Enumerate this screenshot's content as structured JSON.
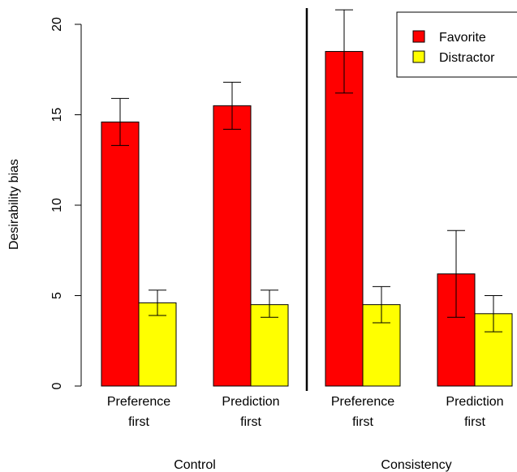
{
  "chart_data": {
    "type": "bar",
    "ylabel": "Desirability bias",
    "ylim": [
      0,
      20
    ],
    "yticks": [
      0,
      5,
      10,
      15,
      20
    ],
    "groups": [
      {
        "name": "Control",
        "categories": [
          {
            "line1": "Preference",
            "line2": "first"
          },
          {
            "line1": "Prediction",
            "line2": "first"
          }
        ]
      },
      {
        "name": "Consistency",
        "categories": [
          {
            "line1": "Preference",
            "line2": "first"
          },
          {
            "line1": "Prediction",
            "line2": "first"
          }
        ]
      }
    ],
    "series": [
      {
        "name": "Favorite",
        "color": "#ff0000",
        "values": [
          14.6,
          15.5,
          18.5,
          6.2
        ],
        "err_low": [
          13.3,
          14.2,
          16.2,
          3.8
        ],
        "err_high": [
          15.9,
          16.8,
          20.8,
          8.6
        ]
      },
      {
        "name": "Distractor",
        "color": "#ffff00",
        "values": [
          4.6,
          4.5,
          4.5,
          4.0
        ],
        "err_low": [
          3.9,
          3.8,
          3.5,
          3.0
        ],
        "err_high": [
          5.3,
          5.3,
          5.5,
          5.0
        ]
      }
    ],
    "legend_position": "top-right",
    "grid": false
  }
}
